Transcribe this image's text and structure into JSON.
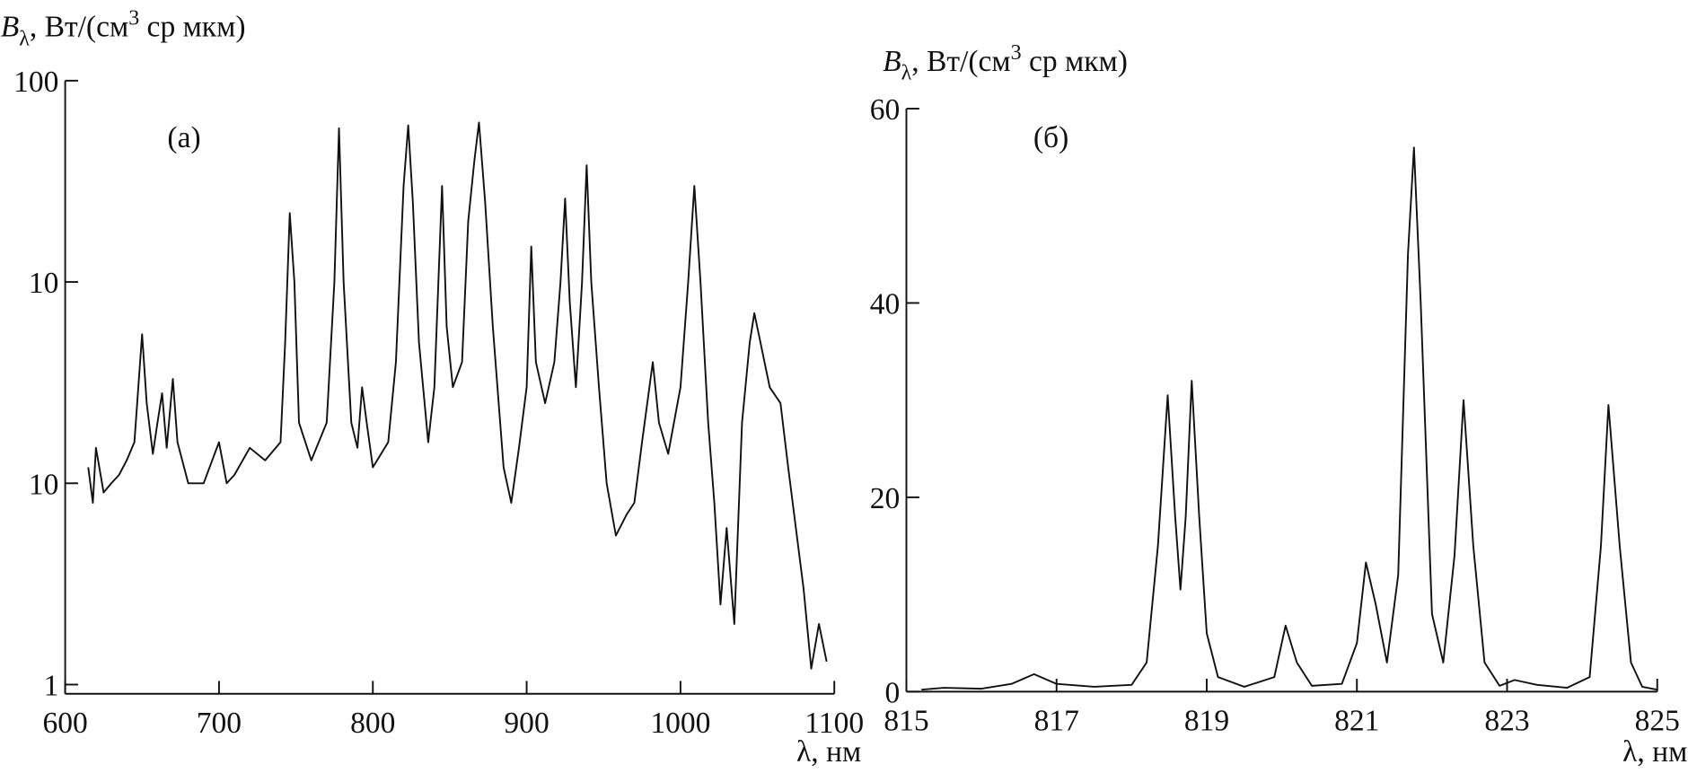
{
  "chart_data": [
    {
      "type": "line",
      "panel_label": "(а)",
      "log_y": true,
      "color": "#111111",
      "ylabel": {
        "symbol": "B",
        "subscript": "λ",
        "unit": ", Вт/(см",
        "superscript": "3",
        "unit_end": " ср мкм)"
      },
      "xlabel": "λ, нм",
      "xlim": [
        600,
        1100
      ],
      "xticks": [
        600,
        700,
        800,
        900,
        1000,
        1100
      ],
      "ylim": [
        0.09,
        100
      ],
      "yticks": [
        {
          "value": 0.1,
          "label": "1"
        },
        {
          "value": 1,
          "label": "10"
        },
        10,
        100
      ],
      "x": [
        615,
        618,
        620,
        625,
        630,
        635,
        640,
        645,
        650,
        653,
        657,
        660,
        663,
        666,
        670,
        673,
        680,
        690,
        700,
        705,
        710,
        720,
        730,
        740,
        743,
        746,
        749,
        752,
        760,
        770,
        775,
        778,
        781,
        786,
        790,
        793,
        796,
        800,
        810,
        815,
        820,
        823,
        826,
        830,
        836,
        840,
        845,
        848,
        852,
        858,
        862,
        866,
        869,
        873,
        878,
        885,
        890,
        895,
        900,
        903,
        906,
        912,
        918,
        922,
        925,
        928,
        932,
        936,
        939,
        942,
        947,
        952,
        958,
        965,
        970,
        975,
        982,
        986,
        992,
        1000,
        1005,
        1009,
        1013,
        1018,
        1022,
        1026,
        1030,
        1035,
        1040,
        1045,
        1048,
        1052,
        1058,
        1065,
        1070,
        1075,
        1080,
        1085,
        1090,
        1095
      ],
      "values": [
        1.2,
        0.8,
        1.5,
        0.9,
        1.0,
        1.1,
        1.3,
        1.6,
        5.5,
        2.5,
        1.4,
        2.0,
        2.8,
        1.5,
        3.3,
        1.6,
        1.0,
        1.0,
        1.6,
        1.0,
        1.1,
        1.5,
        1.3,
        1.6,
        5,
        22,
        10,
        2,
        1.3,
        2,
        10,
        58,
        10,
        2,
        1.5,
        3,
        2,
        1.2,
        1.6,
        4,
        30,
        60,
        25,
        5,
        1.6,
        3,
        30,
        6,
        3,
        4,
        20,
        40,
        62,
        25,
        6,
        1.2,
        0.8,
        1.5,
        3,
        15,
        4,
        2.5,
        4,
        10,
        26,
        8,
        3,
        10,
        38,
        10,
        3,
        1,
        0.55,
        0.7,
        0.8,
        1.6,
        4,
        2,
        1.4,
        3,
        10,
        30,
        10,
        2,
        0.8,
        0.25,
        0.6,
        0.2,
        2,
        5,
        7,
        5,
        3,
        2.5,
        1.2,
        0.6,
        0.3,
        0.12,
        0.2,
        0.13
      ]
    },
    {
      "type": "line",
      "panel_label": "(б)",
      "log_y": false,
      "color": "#111111",
      "ylabel": {
        "symbol": "B",
        "subscript": "λ",
        "unit": ", Вт/(см",
        "superscript": "3",
        "unit_end": " ср мкм)"
      },
      "xlabel": "λ, нм",
      "xlim": [
        815,
        825
      ],
      "xticks": [
        815,
        817,
        819,
        821,
        823,
        825
      ],
      "ylim": [
        0,
        60
      ],
      "yticks": [
        0,
        20,
        40,
        60
      ],
      "x": [
        815.2,
        815.5,
        816,
        816.4,
        816.7,
        817,
        817.5,
        818,
        818.2,
        818.35,
        818.48,
        818.58,
        818.65,
        818.72,
        818.8,
        818.9,
        819.0,
        819.15,
        819.5,
        819.9,
        820.05,
        820.2,
        820.4,
        820.8,
        821.0,
        821.12,
        821.25,
        821.4,
        821.55,
        821.68,
        821.76,
        821.85,
        822.0,
        822.15,
        822.3,
        822.42,
        822.55,
        822.7,
        822.9,
        823.1,
        823.4,
        823.8,
        824.1,
        824.25,
        824.35,
        824.5,
        824.65,
        824.8,
        825
      ],
      "values": [
        0.2,
        0.4,
        0.3,
        0.8,
        1.8,
        0.8,
        0.5,
        0.7,
        3,
        15,
        30.5,
        18,
        10.5,
        18,
        32,
        18,
        6,
        1.5,
        0.5,
        1.5,
        6.8,
        3,
        0.6,
        0.8,
        5,
        13.3,
        9,
        3,
        12,
        45,
        56,
        40,
        8,
        3,
        14,
        30,
        15,
        3,
        0.6,
        1.2,
        0.7,
        0.4,
        1.5,
        15,
        29.5,
        15,
        3,
        0.5,
        0.2
      ]
    }
  ]
}
